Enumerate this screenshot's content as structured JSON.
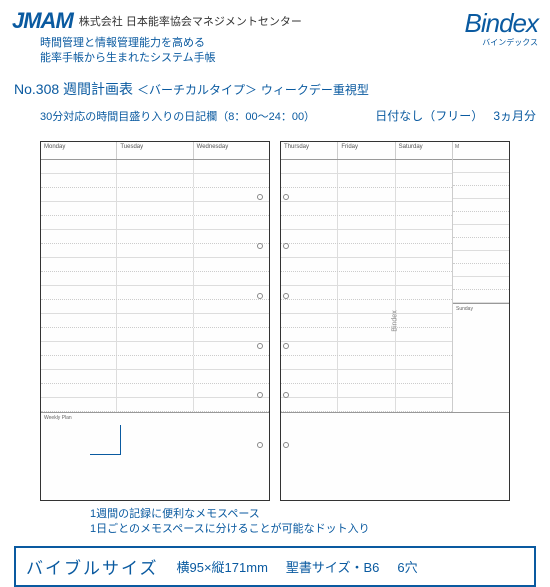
{
  "header": {
    "logo_text": "JMAM",
    "logo_sub": "株式会社 日本能率協会マネジメントセンター",
    "tagline1": "時間管理と情報管理能力を高める",
    "tagline2": "能率手帳から生まれたシステム手帳",
    "bindex": "Bindex",
    "bindex_ruby": "バインデックス"
  },
  "title": {
    "no": "No.308",
    "name": "週間計画表",
    "type": "＜バーチカルタイプ＞",
    "emphasis": "ウィークデー重視型",
    "right1": "日付なし（フリー）",
    "right2": "3ヵ月分"
  },
  "note_top": "30分対応の時間目盛り入りの日記欄（8：00～24：00）",
  "days_left": [
    "Monday",
    "Tuesday",
    "Wednesday"
  ],
  "days_right_top": [
    "Thursday",
    "Friday",
    "Saturday"
  ],
  "day_sunday": "Sunday",
  "memo_label": "Weekly Plan",
  "side_label": "Bindex",
  "bottom_note1": "1週間の記録に便利なメモスペース",
  "bottom_note2": "1日ごとのメモスペースに分けることが可能なドット入り",
  "size": {
    "label": "バイブルサイズ",
    "dims": "横95×縦171mm",
    "format": "聖書サイズ・B6",
    "holes": "6穴"
  },
  "colors": {
    "brand": "#0a5aa0"
  }
}
